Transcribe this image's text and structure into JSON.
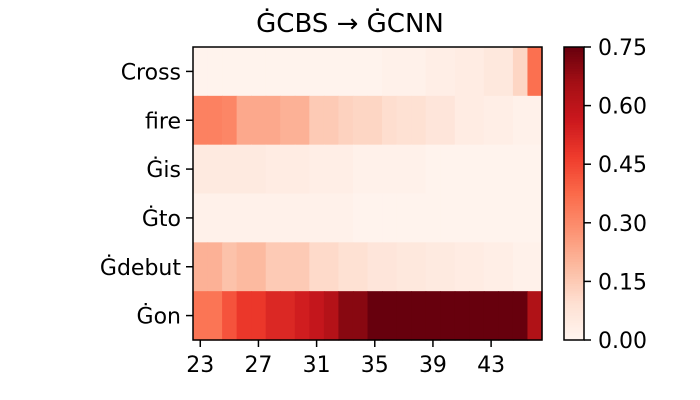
{
  "chart_data": {
    "type": "heatmap",
    "title": "ĠCBS → ĠCNN",
    "xlabel": "",
    "ylabel": "",
    "rows": [
      "Cross",
      "fire",
      "Ġis",
      "Ġto",
      "Ġdebut",
      "Ġon"
    ],
    "x": [
      23,
      24,
      25,
      26,
      27,
      28,
      29,
      30,
      31,
      32,
      33,
      34,
      35,
      36,
      37,
      38,
      39,
      40,
      41,
      42,
      43,
      44,
      45,
      46
    ],
    "x_ticks": [
      23,
      27,
      31,
      35,
      39,
      43
    ],
    "values": [
      [
        0.01,
        0.01,
        0.01,
        0.01,
        0.01,
        0.01,
        0.01,
        0.01,
        0.01,
        0.01,
        0.01,
        0.01,
        0.01,
        0.02,
        0.02,
        0.02,
        0.03,
        0.03,
        0.04,
        0.04,
        0.06,
        0.06,
        0.12,
        0.36
      ],
      [
        0.32,
        0.32,
        0.31,
        0.23,
        0.23,
        0.23,
        0.21,
        0.21,
        0.15,
        0.15,
        0.13,
        0.12,
        0.12,
        0.1,
        0.09,
        0.09,
        0.07,
        0.07,
        0.04,
        0.04,
        0.03,
        0.03,
        0.02,
        0.02
      ],
      [
        0.05,
        0.05,
        0.05,
        0.05,
        0.05,
        0.04,
        0.04,
        0.04,
        0.03,
        0.03,
        0.03,
        0.02,
        0.02,
        0.02,
        0.02,
        0.02,
        0.01,
        0.01,
        0.01,
        0.01,
        0.01,
        0.01,
        0.01,
        0.01
      ],
      [
        0.02,
        0.02,
        0.02,
        0.02,
        0.02,
        0.02,
        0.02,
        0.02,
        0.02,
        0.02,
        0.02,
        0.01,
        0.01,
        0.01,
        0.01,
        0.01,
        0.01,
        0.01,
        0.01,
        0.01,
        0.01,
        0.01,
        0.01,
        0.01
      ],
      [
        0.21,
        0.21,
        0.17,
        0.19,
        0.19,
        0.15,
        0.15,
        0.15,
        0.11,
        0.11,
        0.09,
        0.09,
        0.07,
        0.07,
        0.06,
        0.06,
        0.05,
        0.05,
        0.04,
        0.04,
        0.03,
        0.03,
        0.02,
        0.02
      ],
      [
        0.35,
        0.35,
        0.42,
        0.48,
        0.48,
        0.52,
        0.52,
        0.55,
        0.58,
        0.62,
        0.7,
        0.7,
        0.75,
        0.75,
        0.75,
        0.75,
        0.75,
        0.75,
        0.75,
        0.75,
        0.75,
        0.75,
        0.75,
        0.63
      ]
    ],
    "colorbar": {
      "min": 0.0,
      "max": 0.75,
      "ticks": [
        "0.00",
        "0.15",
        "0.30",
        "0.45",
        "0.60",
        "0.75"
      ],
      "colormap": "Reds"
    },
    "grid": false
  }
}
